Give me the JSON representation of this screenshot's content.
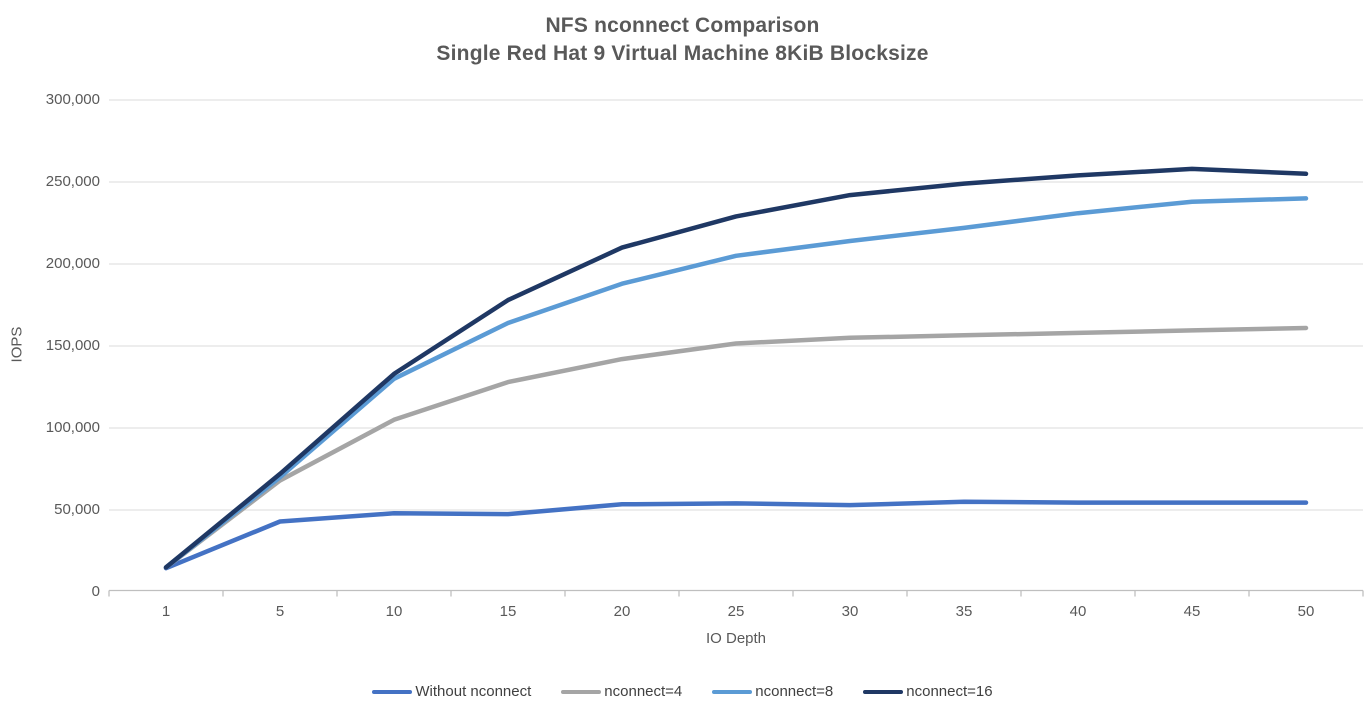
{
  "title": {
    "line1": "NFS nconnect Comparison",
    "line2": "Single Red Hat 9 Virtual Machine 8KiB Blocksize"
  },
  "chart_data": {
    "type": "line",
    "title": "NFS nconnect Comparison",
    "subtitle": "Single Red Hat 9 Virtual Machine 8KiB Blocksize",
    "xlabel": "IO Depth",
    "ylabel": "IOPS",
    "ylim": [
      0,
      300000
    ],
    "grid": "horizontal",
    "legend_position": "bottom",
    "categories": [
      "1",
      "5",
      "10",
      "15",
      "20",
      "25",
      "30",
      "35",
      "40",
      "45",
      "50"
    ],
    "y_ticks": [
      {
        "value": 0,
        "label": "0"
      },
      {
        "value": 50000,
        "label": "50,000"
      },
      {
        "value": 100000,
        "label": "100,000"
      },
      {
        "value": 150000,
        "label": "150,000"
      },
      {
        "value": 200000,
        "label": "200,000"
      },
      {
        "value": 250000,
        "label": "250,000"
      },
      {
        "value": 300000,
        "label": "300,000"
      }
    ],
    "series": [
      {
        "name": "Without nconnect",
        "color": "#4472C4",
        "values": [
          14500,
          43000,
          48000,
          47500,
          53500,
          54000,
          53000,
          55000,
          54500,
          54500,
          54500
        ]
      },
      {
        "name": "nconnect=4",
        "color": "#A5A5A5",
        "values": [
          15000,
          68000,
          105000,
          128000,
          142000,
          151500,
          155000,
          156500,
          158000,
          159500,
          161000
        ]
      },
      {
        "name": "nconnect=8",
        "color": "#5B9BD5",
        "values": [
          15000,
          70000,
          130000,
          164000,
          188000,
          205000,
          214000,
          222000,
          231000,
          238000,
          240000
        ]
      },
      {
        "name": "nconnect=16",
        "color": "#1F3864",
        "values": [
          15000,
          72000,
          133000,
          178000,
          210000,
          229000,
          242000,
          249000,
          254000,
          258000,
          255000
        ]
      }
    ],
    "colors": {
      "grid": "#E2E2E2",
      "axis": "#BFBFBF",
      "tick_text": "#595959",
      "legend_text": "#404040",
      "title_text": "#595959",
      "background": "#FFFFFF"
    }
  }
}
